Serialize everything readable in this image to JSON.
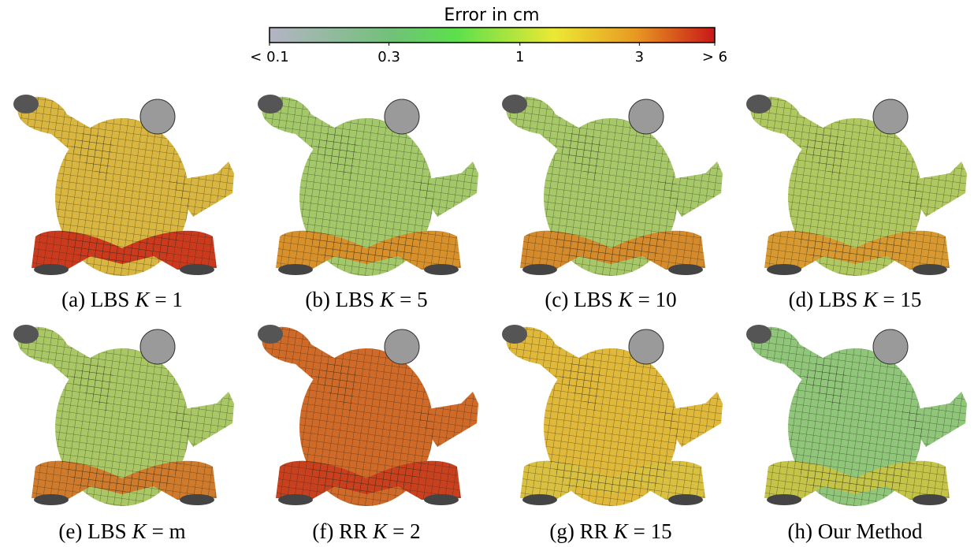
{
  "colorbar": {
    "title": "Error in cm",
    "scale": "log",
    "lim": [
      0.1,
      6
    ],
    "ticks": [
      {
        "value": 0.1,
        "label": "< 0.1"
      },
      0.3,
      1,
      3,
      {
        "value": 6,
        "label": "> 6"
      }
    ]
  },
  "panels": [
    {
      "label": "(a) LBS",
      "var": "K",
      "value": "= 1"
    },
    {
      "label": "(b) LBS",
      "var": "K",
      "value": "= 5"
    },
    {
      "label": "(c) LBS",
      "var": "K",
      "value": "= 10"
    },
    {
      "label": "(d) LBS",
      "var": "K",
      "value": "= 15"
    },
    {
      "label": "(e) LBS",
      "var": "K",
      "value": "= m"
    },
    {
      "label": "(f) RR",
      "var": "K",
      "value": "= 2"
    },
    {
      "label": "(g) RR",
      "var": "K",
      "value": "= 15"
    },
    {
      "label": "(h) Our Method"
    }
  ]
}
